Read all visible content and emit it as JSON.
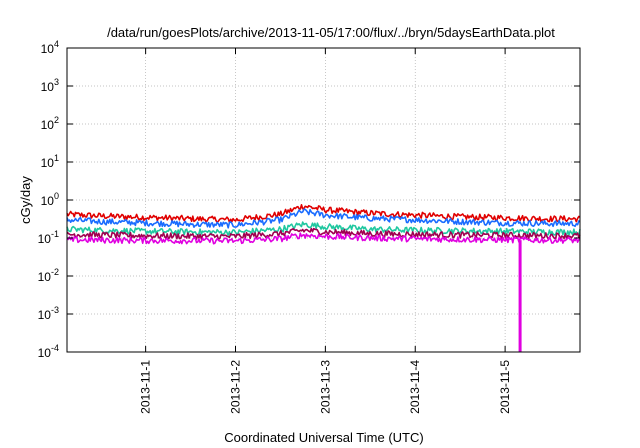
{
  "chart_data": {
    "type": "line",
    "title": "/data/run/goesPlots/archive/2013-11-05/17:00/flux/../bryn/5daysEarthData.plot",
    "xlabel": "Coordinated Universal Time (UTC)",
    "ylabel": "cGy/day",
    "x_range": [
      "2013-10-31T03:00",
      "2013-11-05T20:00"
    ],
    "x_ticks": [
      "2013-11-1",
      "2013-11-2",
      "2013-11-3",
      "2013-11-4",
      "2013-11-5"
    ],
    "y_scale": "log",
    "ylim": [
      0.0001,
      10000
    ],
    "y_ticks": [
      {
        "base": "10",
        "exp": "4",
        "value": 10000
      },
      {
        "base": "10",
        "exp": "3",
        "value": 1000
      },
      {
        "base": "10",
        "exp": "2",
        "value": 100
      },
      {
        "base": "10",
        "exp": "1",
        "value": 10
      },
      {
        "base": "10",
        "exp": "0",
        "value": 1
      },
      {
        "base": "10",
        "exp": "-1",
        "value": 0.1
      },
      {
        "base": "10",
        "exp": "-2",
        "value": 0.01
      },
      {
        "base": "10",
        "exp": "-3",
        "value": 0.001
      },
      {
        "base": "10",
        "exp": "-4",
        "value": 0.0001
      }
    ],
    "grid": true,
    "x": [
      "2013-10-31T03:00",
      "2013-10-31T12:00",
      "2013-11-01T00:00",
      "2013-11-01T12:00",
      "2013-11-02T00:00",
      "2013-11-02T12:00",
      "2013-11-02T18:00",
      "2013-11-03T00:00",
      "2013-11-03T12:00",
      "2013-11-04T00:00",
      "2013-11-04T12:00",
      "2013-11-05T00:00",
      "2013-11-05T12:00",
      "2013-11-05T20:00"
    ],
    "series": [
      {
        "color": "#e00000",
        "values": [
          0.42,
          0.38,
          0.35,
          0.32,
          0.3,
          0.42,
          0.7,
          0.55,
          0.45,
          0.4,
          0.36,
          0.34,
          0.32,
          0.32
        ]
      },
      {
        "color": "#1a6cff",
        "values": [
          0.3,
          0.27,
          0.25,
          0.23,
          0.22,
          0.3,
          0.5,
          0.4,
          0.33,
          0.3,
          0.27,
          0.25,
          0.24,
          0.24
        ]
      },
      {
        "color": "#20c8a0",
        "values": [
          0.17,
          0.16,
          0.15,
          0.145,
          0.14,
          0.17,
          0.23,
          0.2,
          0.17,
          0.16,
          0.155,
          0.15,
          0.145,
          0.145
        ]
      },
      {
        "color": "#a00050",
        "values": [
          0.125,
          0.12,
          0.115,
          0.112,
          0.11,
          0.13,
          0.16,
          0.145,
          0.13,
          0.125,
          0.12,
          0.118,
          0.115,
          0.115
        ]
      },
      {
        "color": "#e000e0",
        "values": [
          0.09,
          0.088,
          0.086,
          0.085,
          0.084,
          0.095,
          0.12,
          0.11,
          0.1,
          0.095,
          0.092,
          0.09,
          0.088,
          0.088
        ]
      }
    ],
    "annotations": [
      {
        "type": "vertical_dropout",
        "series_color": "#e000e0",
        "x": "2013-11-05T04:00",
        "y_min": 0.0001
      }
    ]
  }
}
